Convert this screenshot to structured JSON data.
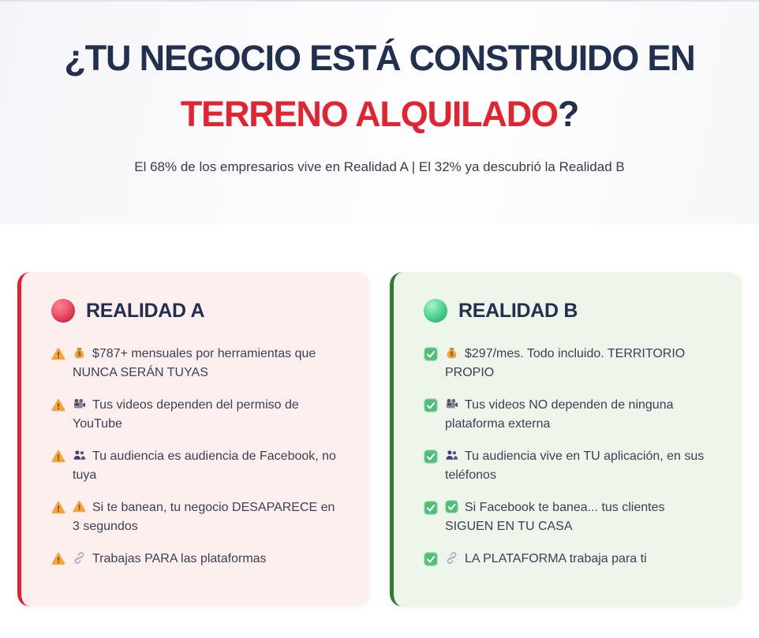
{
  "hero": {
    "title_line1": "¿TU NEGOCIO ESTÁ CONSTRUIDO EN",
    "title_highlight": "TERRENO ALQUILADO",
    "title_suffix": "?",
    "subtitle": "El 68% de los empresarios vive en Realidad A | El 32% ya descubrió la Realidad B"
  },
  "colors": {
    "heading_navy": "#22304f",
    "accent_red": "#e42330",
    "subtitle_color": "#343b4e",
    "body_text": "#3a4152",
    "top_border": "#e3e0ee",
    "card_a_border": "#dd2430",
    "card_a_bg": "#fdefee",
    "card_b_border": "#2e7d32",
    "card_b_bg": "#eef5ea",
    "warning_orange": "#f3a53a",
    "check_green": "#52bd79"
  },
  "cards": [
    {
      "id": "realidad-a",
      "title": "REALIDAD A",
      "marker_icon": "red-circle-icon",
      "bullet_icon": "warning-icon",
      "items": [
        {
          "icon": "money-bag-icon",
          "text": "$787+ mensuales por herramientas que NUNCA SERÁN TUYAS"
        },
        {
          "icon": "video-camera-icon",
          "text": "Tus videos dependen del permiso de YouTube"
        },
        {
          "icon": "people-icon",
          "text": "Tu audiencia es audiencia de Facebook, no tuya"
        },
        {
          "icon": "warning-icon",
          "text": "Si te banean, tu negocio DESAPARECE en 3 segundos"
        },
        {
          "icon": "link-icon",
          "text": "Trabajas PARA las plataformas"
        }
      ]
    },
    {
      "id": "realidad-b",
      "title": "REALIDAD B",
      "marker_icon": "green-circle-icon",
      "bullet_icon": "check-icon",
      "items": [
        {
          "icon": "money-bag-icon",
          "text": "$297/mes. Todo incluido. TERRITORIO PROPIO"
        },
        {
          "icon": "video-camera-icon",
          "text": "Tus videos NO dependen de ninguna plataforma externa"
        },
        {
          "icon": "people-icon",
          "text": "Tu audiencia vive en TU aplicación, en sus teléfonos"
        },
        {
          "icon": "check-icon",
          "text": "Si Facebook te banea... tus clientes SIGUEN EN TU CASA"
        },
        {
          "icon": "link-icon",
          "text": "LA PLATAFORMA trabaja para ti"
        }
      ]
    }
  ]
}
